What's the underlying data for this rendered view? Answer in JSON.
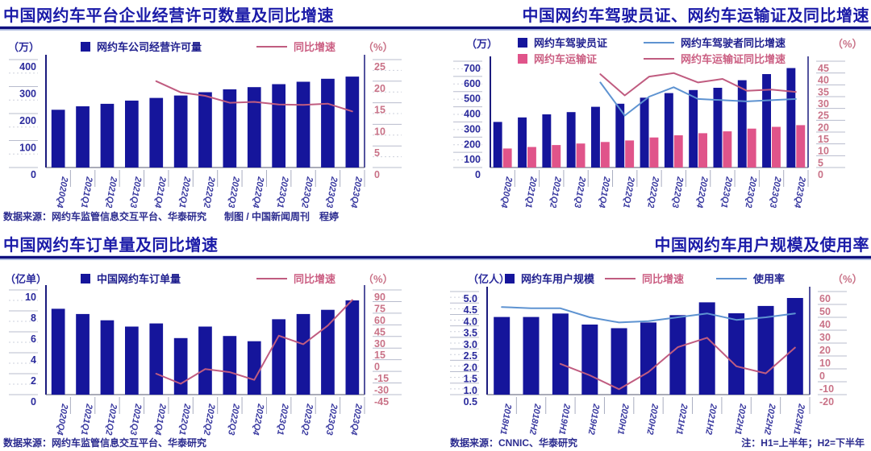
{
  "colors": {
    "navy_bar": "#15159B",
    "pink_bar": "#E0548A",
    "pink_line": "#C05C80",
    "blue_line": "#5E93D1",
    "title": "#1B1BA8",
    "rule": "#10107E",
    "axis_left_label": "#2A2A9C",
    "axis_right_label": "#C97287"
  },
  "chart_data": [
    {
      "type": "bar+line",
      "title": "中国网约车平台企业经营许可数量及同比增速",
      "unit_left": "（万）",
      "unit_right": "（%）",
      "categories": [
        "2020Q4",
        "2021Q1",
        "2021Q2",
        "2021Q3",
        "2021Q4",
        "2022Q1",
        "2022Q2",
        "2022Q3",
        "2022Q4",
        "2023Q1",
        "2023Q2",
        "2023Q3",
        "2023Q4"
      ],
      "bar_series": [
        {
          "name": "网约车公司经营许可量",
          "color": "#15159B",
          "values": [
            214,
            227,
            236,
            248,
            258,
            267,
            279,
            290,
            298,
            309,
            318,
            329,
            337
          ]
        }
      ],
      "line_series": [
        {
          "name": "同比增速",
          "color": "#C05C80",
          "axis": "right",
          "values": [
            null,
            null,
            null,
            null,
            20,
            17.4,
            16.6,
            15,
            15.2,
            14.6,
            14.5,
            14.8,
            13
          ]
        }
      ],
      "left_axis": {
        "min": 0,
        "max": 400,
        "step": 100,
        "minor": true,
        "decimals": 0
      },
      "right_axis": {
        "min": 0,
        "max": 25,
        "step": 5,
        "minor": true,
        "decimals": 0
      },
      "legend_position": "top",
      "grid": false,
      "source": "数据来源：网约车监管信息交互平台、华泰研究",
      "credit": "制图 / 中国新闻周刊　程婷"
    },
    {
      "type": "bar+line",
      "title": "中国网约车驾驶员证、网约车运输证及同比增速",
      "unit_left": "（万）",
      "unit_right": "（%）",
      "categories": [
        "2020Q4",
        "2021Q1",
        "2021Q2",
        "2021Q3",
        "2021Q4",
        "2022Q1",
        "2022Q2",
        "2022Q3",
        "2022Q4",
        "2023Q1",
        "2023Q2",
        "2023Q3",
        "2023Q4"
      ],
      "bar_series": [
        {
          "name": "网约车驾驶员证",
          "color": "#15159B",
          "values": [
            300,
            330,
            350,
            365,
            400,
            420,
            460,
            490,
            510,
            525,
            575,
            615,
            655
          ]
        },
        {
          "name": "网约车运输证",
          "color": "#E0548A",
          "values": [
            125,
            135,
            148,
            158,
            168,
            178,
            198,
            212,
            226,
            238,
            256,
            268,
            279
          ]
        }
      ],
      "line_series": [
        {
          "name": "网约车驾驶者同比增速",
          "color": "#5E93D1",
          "axis": "right",
          "values": [
            null,
            null,
            null,
            null,
            36,
            22,
            30,
            34,
            29,
            28.5,
            28,
            28.5,
            29
          ]
        },
        {
          "name": "网约车运输证同比增速",
          "color": "#C05C80",
          "axis": "right",
          "values": [
            null,
            null,
            null,
            null,
            39.5,
            30.5,
            38.5,
            40,
            36,
            37.5,
            32.5,
            33,
            32
          ]
        }
      ],
      "left_axis": {
        "min": 0,
        "max": 700,
        "step": 100,
        "minor": true,
        "decimals": 0
      },
      "right_axis": {
        "min": 0,
        "max": 45,
        "step": 5,
        "minor": false,
        "decimals": 0
      },
      "legend_position": "top",
      "grid": false
    },
    {
      "type": "bar+line",
      "title": "中国网约车订单量及同比增速",
      "unit_left": "（亿单）",
      "unit_right": "（%）",
      "categories": [
        "2020Q4",
        "2021Q1",
        "2021Q2",
        "2021Q3",
        "2021Q4",
        "2022Q1",
        "2022Q2",
        "2022Q3",
        "2022Q4",
        "2023Q1",
        "2023Q2",
        "2023Q3",
        "2023Q4"
      ],
      "bar_series": [
        {
          "name": "中国网约车订单量",
          "color": "#15159B",
          "values": [
            8.2,
            7.7,
            7.1,
            6.5,
            6.8,
            5.4,
            6.5,
            5.6,
            5.1,
            7.2,
            7.7,
            8.1,
            9.0
          ]
        }
      ],
      "line_series": [
        {
          "name": "同比增速",
          "color": "#C05C80",
          "axis": "right",
          "values": [
            null,
            null,
            null,
            null,
            -18,
            -31,
            -12,
            -16,
            -26,
            31,
            20,
            44,
            77
          ]
        }
      ],
      "left_axis": {
        "min": 0,
        "max": 10,
        "step": 2,
        "minor": true,
        "decimals": 0
      },
      "right_axis": {
        "min": -45,
        "max": 90,
        "step": 15,
        "minor": false,
        "decimals": 0
      },
      "legend_position": "top",
      "grid": false,
      "source": "数据来源：网约车监管信息交互平台、华泰研究"
    },
    {
      "type": "bar+line",
      "title": "中国网约车用户规模及使用率",
      "unit_left": "（亿人）",
      "unit_right": "（%）",
      "categories": [
        "2018H1",
        "2018H2",
        "2019H1",
        "2019H2",
        "2020H1",
        "2020H2",
        "2021H1",
        "2021H2",
        "2022H1",
        "2022H2",
        "2023H1"
      ],
      "bar_series": [
        {
          "name": "网约车用户规模",
          "color": "#15159B",
          "values": [
            3.89,
            3.89,
            4.04,
            3.56,
            3.4,
            3.65,
            3.97,
            4.53,
            4.05,
            4.37,
            4.72
          ]
        }
      ],
      "line_series": [
        {
          "name": "同比增速",
          "color": "#C05C80",
          "axis": "right",
          "values": [
            null,
            null,
            3.9,
            -5,
            -15.8,
            -2.5,
            16.8,
            24.1,
            2.0,
            -3.5,
            16.5
          ]
        },
        {
          "name": "使用率",
          "color": "#5E93D1",
          "axis": "right",
          "values": [
            48,
            47,
            47,
            40,
            36,
            37,
            40,
            43,
            38,
            40,
            43
          ]
        }
      ],
      "left_axis": {
        "min": 0.5,
        "max": 5.0,
        "step": 0.5,
        "minor": true,
        "decimals": 1
      },
      "right_axis": {
        "min": -20,
        "max": 60,
        "step": 10,
        "minor": false,
        "decimals": 0
      },
      "legend_position": "top",
      "grid": false,
      "source": "数据来源：CNNIC、华泰研究",
      "note": "注：H1=上半年；H2=下半年"
    }
  ]
}
